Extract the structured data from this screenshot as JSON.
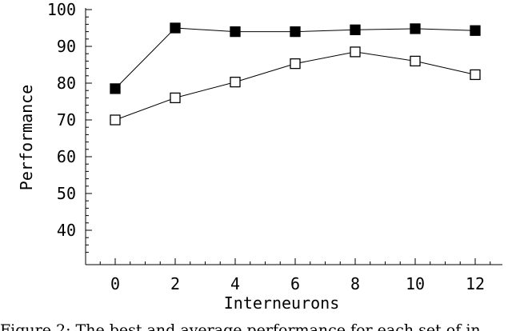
{
  "chart_data": {
    "type": "line",
    "title": "",
    "xlabel": "Interneurons",
    "ylabel": "Performance",
    "x": [
      0,
      2,
      4,
      6,
      8,
      10,
      12
    ],
    "xticks": [
      "0",
      "2",
      "4",
      "6",
      "8",
      "10",
      "12"
    ],
    "yticks": [
      "40",
      "50",
      "60",
      "70",
      "80",
      "90",
      "100"
    ],
    "ylim": [
      33,
      100
    ],
    "xlim": [
      -1,
      13
    ],
    "grid": false,
    "legend": "none",
    "series": [
      {
        "marker": "filled-square",
        "values": [
          78.5,
          95,
          94,
          94,
          94.5,
          94.8,
          94.3
        ]
      },
      {
        "marker": "open-square",
        "values": [
          70,
          76,
          80.3,
          85.3,
          88.5,
          86,
          82.3
        ]
      }
    ]
  },
  "caption": "Figure 2: The best and average performance for each set of in"
}
